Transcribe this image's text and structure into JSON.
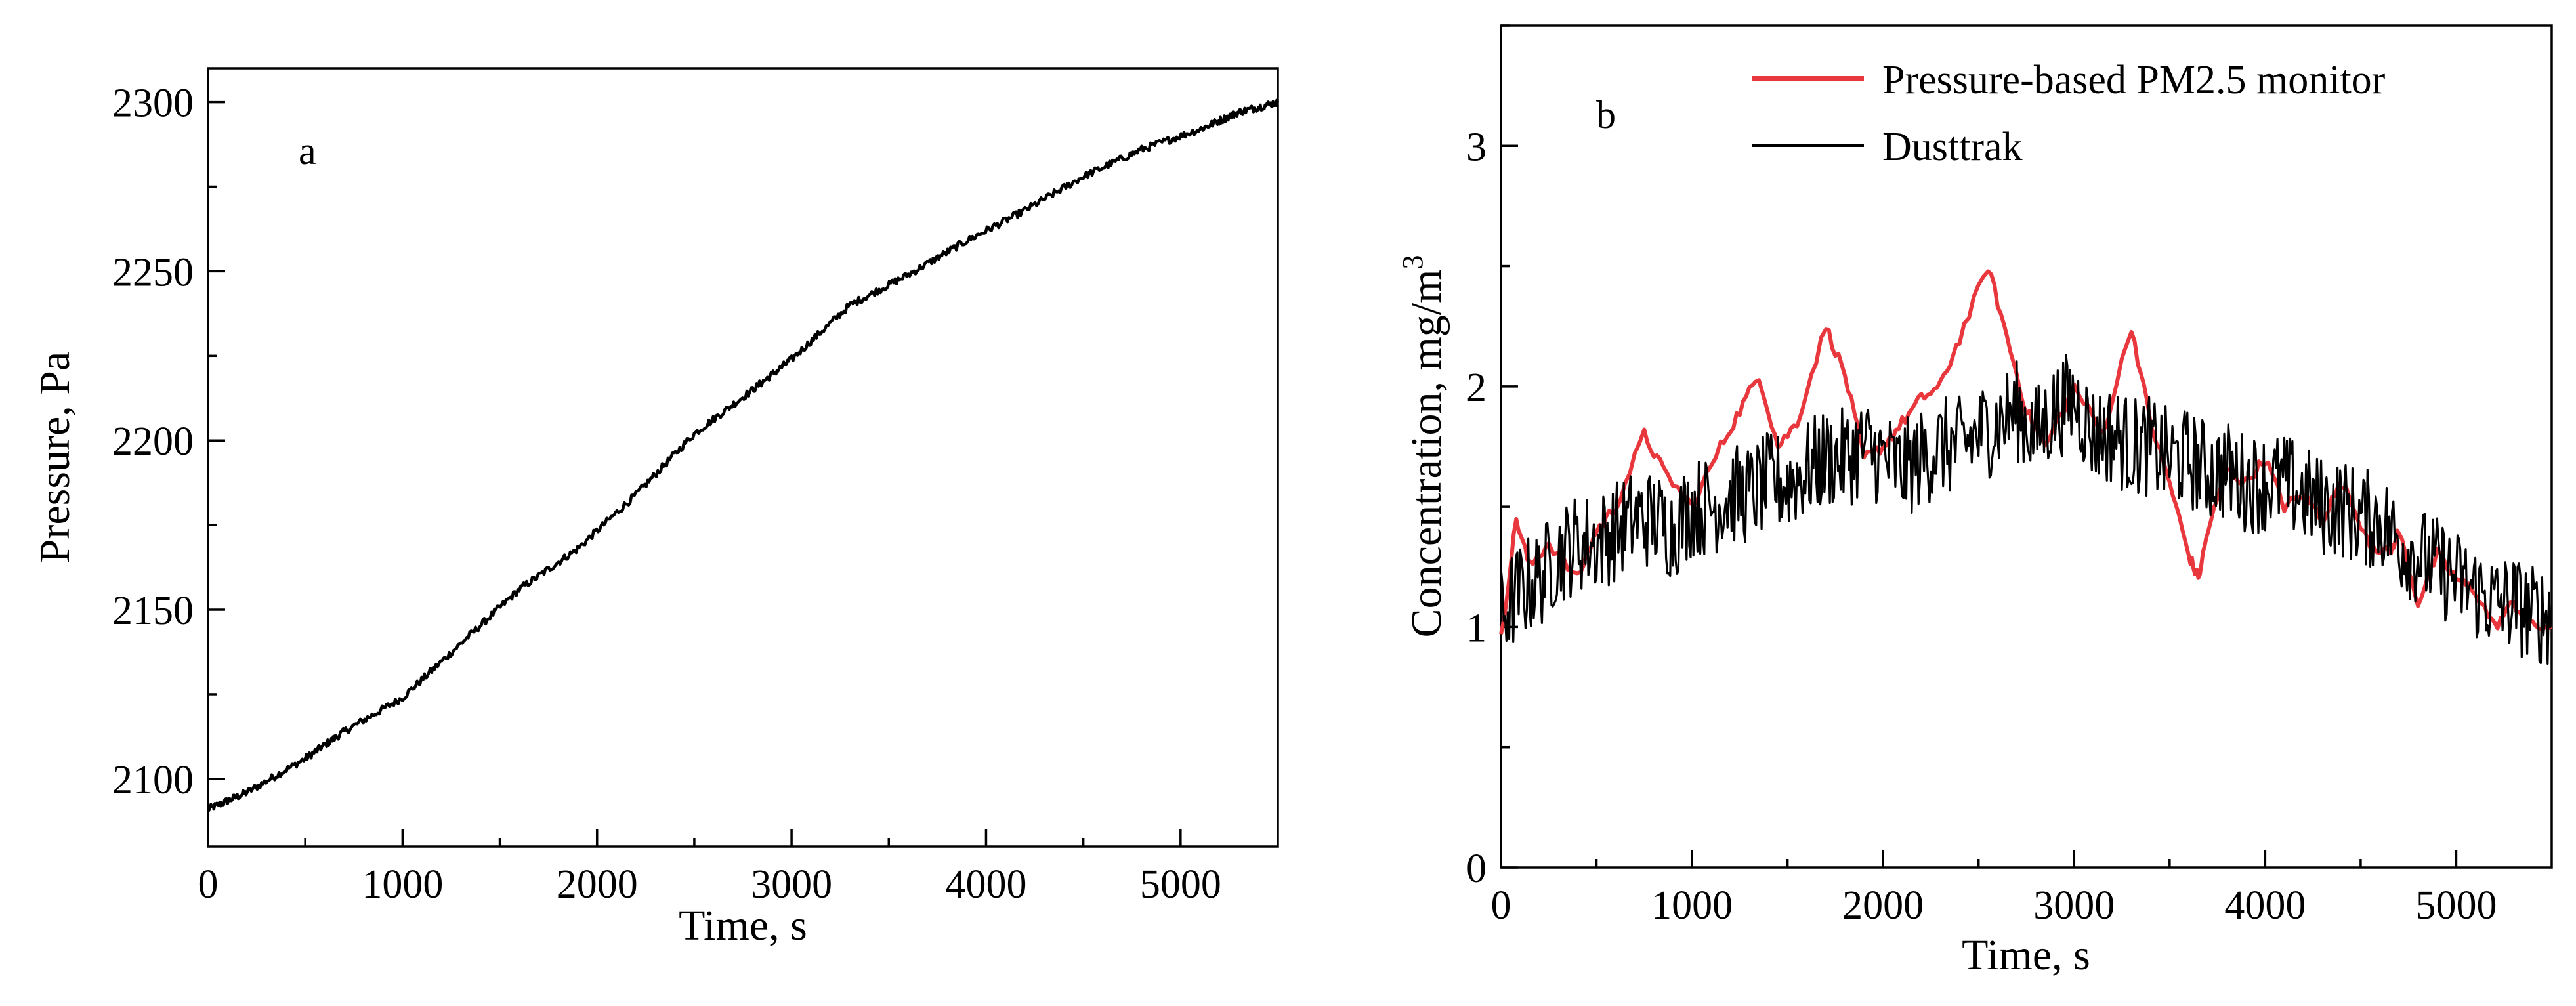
{
  "chart_data": [
    {
      "type": "line",
      "panel_label": "a",
      "xlabel": "Time, s",
      "ylabel": "Pressure, Pa",
      "xlim": [
        0,
        5500
      ],
      "ylim": [
        2080,
        2310
      ],
      "xticks": [
        0,
        1000,
        2000,
        3000,
        4000,
        5000
      ],
      "yticks": [
        2100,
        2150,
        2200,
        2250,
        2300
      ],
      "series": [
        {
          "name": "Pressure",
          "color": "#000000",
          "x": [
            0,
            200,
            500,
            700,
            1000,
            1300,
            1600,
            1900,
            2200,
            2500,
            2800,
            3000,
            3300,
            3600,
            3900,
            4200,
            4500,
            4800,
            5100,
            5300,
            5500
          ],
          "y": [
            2091,
            2096,
            2106,
            2114,
            2124,
            2140,
            2156,
            2168,
            2184,
            2202,
            2215,
            2224,
            2240,
            2249,
            2259,
            2268,
            2278,
            2286,
            2292,
            2297,
            2300
          ]
        }
      ]
    },
    {
      "type": "line",
      "panel_label": "b",
      "xlabel": "Time, s",
      "ylabel": "Concentration, mg/m",
      "ylabel_superscript": "3",
      "xlim": [
        0,
        5500
      ],
      "ylim": [
        0,
        3.5
      ],
      "xticks": [
        0,
        1000,
        2000,
        3000,
        4000,
        5000
      ],
      "yticks": [
        0,
        1,
        2,
        3
      ],
      "legend": "top-right",
      "series": [
        {
          "name": "Pressure-based PM2.5 monitor",
          "color": "#e8383d",
          "x": [
            0,
            80,
            150,
            250,
            400,
            500,
            600,
            750,
            850,
            1000,
            1150,
            1250,
            1350,
            1450,
            1550,
            1700,
            1800,
            1900,
            2000,
            2100,
            2200,
            2300,
            2400,
            2550,
            2650,
            2750,
            2850,
            3000,
            3150,
            3300,
            3400,
            3500,
            3600,
            3650,
            3700,
            3800,
            3900,
            4000,
            4100,
            4200,
            4300,
            4400,
            4550,
            4650,
            4700,
            4800,
            4900,
            5000,
            5100,
            5200,
            5300,
            5400,
            5500
          ],
          "y": [
            0.95,
            1.45,
            1.25,
            1.35,
            1.2,
            1.4,
            1.5,
            1.8,
            1.65,
            1.5,
            1.75,
            1.9,
            2.05,
            1.75,
            1.85,
            2.25,
            2.05,
            1.7,
            1.75,
            1.85,
            1.95,
            2.0,
            2.2,
            2.5,
            2.2,
            1.9,
            1.75,
            2.0,
            1.8,
            2.25,
            1.85,
            1.6,
            1.3,
            1.2,
            1.4,
            1.65,
            1.6,
            1.7,
            1.5,
            1.55,
            1.45,
            1.6,
            1.35,
            1.3,
            1.4,
            1.1,
            1.3,
            1.2,
            1.15,
            1.0,
            1.1,
            1.0,
            1.0
          ]
        },
        {
          "name": "Dusttrak",
          "color": "#000000",
          "x": [
            0,
            100,
            200,
            300,
            400,
            500,
            600,
            700,
            800,
            900,
            1000,
            1100,
            1200,
            1300,
            1400,
            1500,
            1600,
            1700,
            1800,
            1900,
            2000,
            2100,
            2200,
            2300,
            2400,
            2500,
            2600,
            2700,
            2800,
            2900,
            3000,
            3100,
            3200,
            3300,
            3400,
            3500,
            3600,
            3700,
            3800,
            3900,
            4000,
            4100,
            4200,
            4300,
            4400,
            4500,
            4600,
            4700,
            4800,
            4900,
            5000,
            5100,
            5200,
            5300,
            5400,
            5500
          ],
          "y": [
            1.05,
            1.15,
            1.2,
            1.3,
            1.35,
            1.35,
            1.4,
            1.45,
            1.45,
            1.4,
            1.5,
            1.5,
            1.55,
            1.55,
            1.6,
            1.6,
            1.65,
            1.7,
            1.7,
            1.75,
            1.7,
            1.65,
            1.7,
            1.75,
            1.75,
            1.8,
            1.85,
            1.9,
            1.8,
            1.9,
            1.95,
            1.8,
            1.8,
            1.75,
            1.75,
            1.7,
            1.7,
            1.65,
            1.65,
            1.6,
            1.6,
            1.6,
            1.55,
            1.5,
            1.5,
            1.45,
            1.45,
            1.35,
            1.3,
            1.25,
            1.2,
            1.15,
            1.1,
            1.1,
            1.05,
            1.05
          ]
        }
      ]
    }
  ]
}
